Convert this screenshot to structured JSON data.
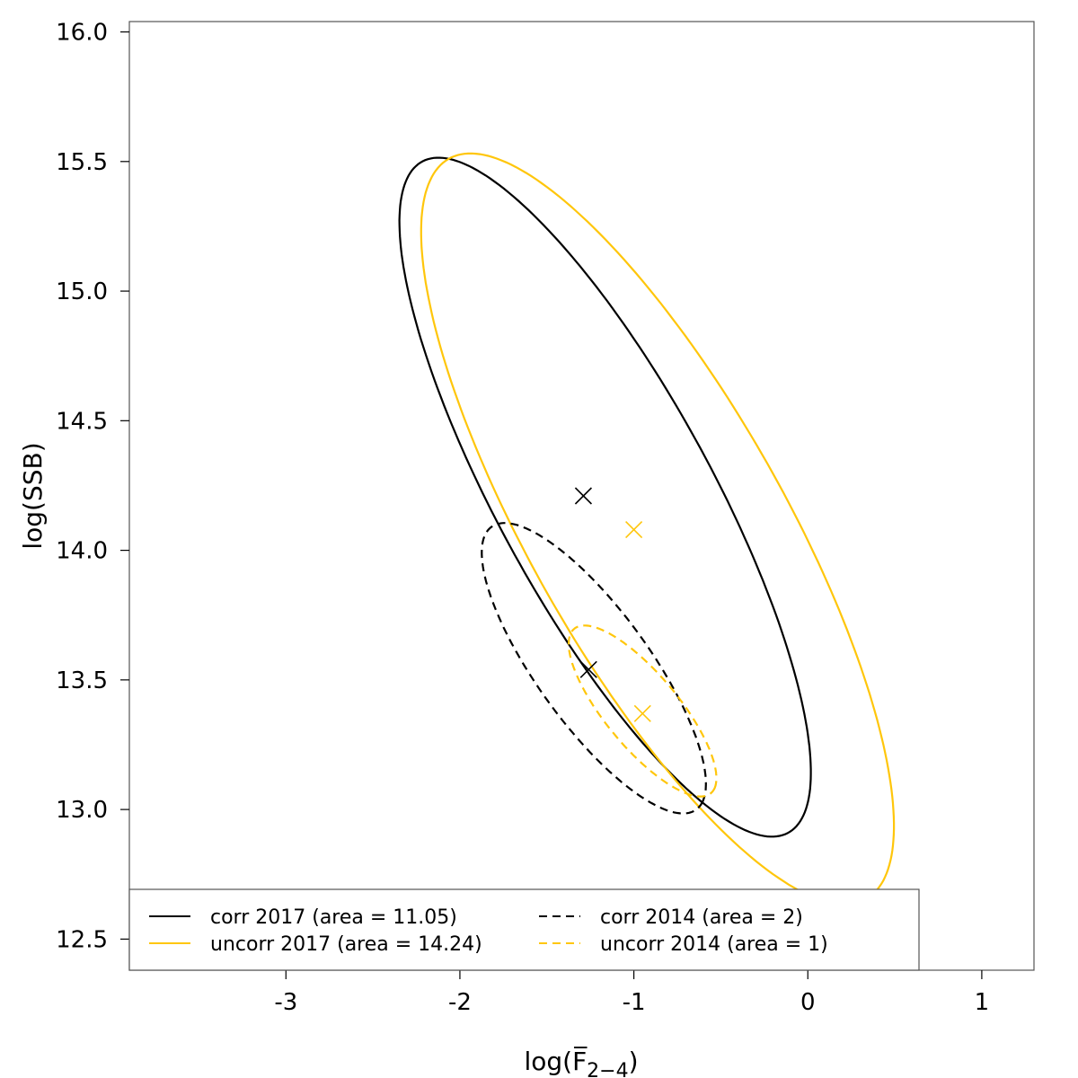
{
  "chart_data": {
    "type": "scatter",
    "title": "",
    "xlabel": "log(F̅2−4)",
    "xlabel_parts": {
      "pre": "log(",
      "main": "F̅",
      "sub": "2−4",
      "post": ")"
    },
    "ylabel": "log(SSB)",
    "xlim": [
      -3.9,
      1.3
    ],
    "ylim": [
      12.38,
      16.04
    ],
    "x_ticks": [
      -3,
      -2,
      -1,
      0,
      1
    ],
    "x_tick_labels": [
      "-3",
      "-2",
      "-1",
      "0",
      "1"
    ],
    "y_ticks": [
      12.5,
      13.0,
      13.5,
      14.0,
      14.5,
      15.0,
      15.5,
      16.0
    ],
    "y_tick_labels": [
      "12.5",
      "13.0",
      "13.5",
      "14.0",
      "14.5",
      "15.0",
      "15.5",
      "16.0"
    ],
    "grid": false,
    "legend_position": "bottom-left",
    "series": [
      {
        "name": "corr 2017 (area = 11.05)",
        "color": "#000000",
        "dash": "solid",
        "center": [
          -1.29,
          14.21
        ],
        "ellipse": {
          "cx": -1.165,
          "cy": 14.205,
          "a": 1.68,
          "b": 0.54,
          "angle_deg": -48.6
        }
      },
      {
        "name": "uncorr 2017 (area = 14.24)",
        "color": "#FFC60B",
        "dash": "solid",
        "center": [
          -1.0,
          14.08
        ],
        "ellipse": {
          "cx": -0.864,
          "cy": 14.083,
          "a": 1.88,
          "b": 0.64,
          "angle_deg": -47.3
        }
      },
      {
        "name": "corr 2014 (area = 2)",
        "color": "#000000",
        "dash": "dashed",
        "center": [
          -1.26,
          13.54
        ],
        "ellipse": {
          "cx": -1.23,
          "cy": 13.545,
          "a": 0.81,
          "b": 0.27,
          "angle_deg": -40.0
        }
      },
      {
        "name": "uncorr 2014 (area = 1)",
        "color": "#FFC60B",
        "dash": "dashed",
        "center": [
          -0.95,
          13.37
        ],
        "ellipse": {
          "cx": -0.95,
          "cy": 13.38,
          "a": 0.51,
          "b": 0.17,
          "angle_deg": -36.0
        }
      }
    ]
  }
}
